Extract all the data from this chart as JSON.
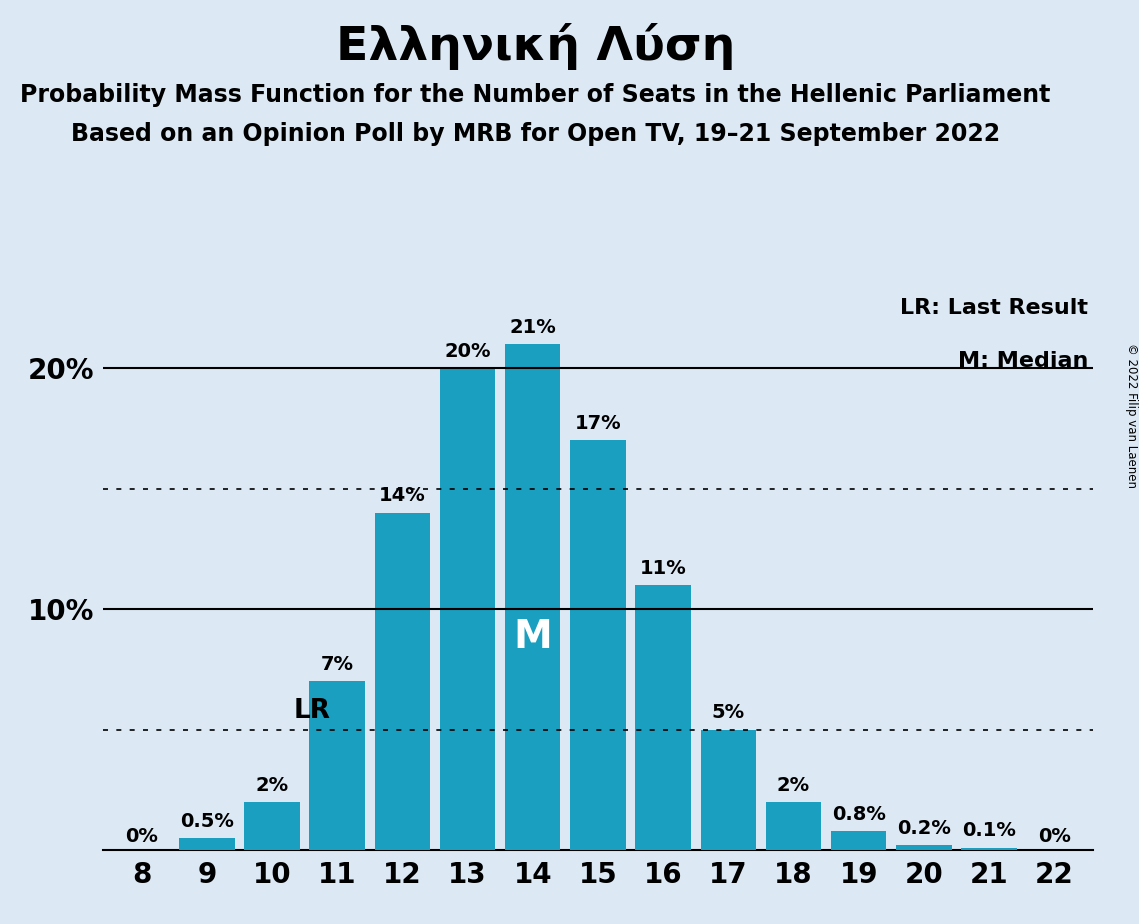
{
  "title": "Ελληνική Λύση",
  "subtitle1": "Probability Mass Function for the Number of Seats in the Hellenic Parliament",
  "subtitle2": "Based on an Opinion Poll by MRB for Open TV, 19–21 September 2022",
  "copyright": "© 2022 Filip van Laenen",
  "seats": [
    8,
    9,
    10,
    11,
    12,
    13,
    14,
    15,
    16,
    17,
    18,
    19,
    20,
    21,
    22
  ],
  "probabilities": [
    0.0,
    0.5,
    2.0,
    7.0,
    14.0,
    20.0,
    21.0,
    17.0,
    11.0,
    5.0,
    2.0,
    0.8,
    0.2,
    0.1,
    0.0
  ],
  "labels": [
    "0%",
    "0.5%",
    "2%",
    "7%",
    "14%",
    "20%",
    "21%",
    "17%",
    "11%",
    "5%",
    "2%",
    "0.8%",
    "0.2%",
    "0.1%",
    "0%"
  ],
  "bar_color": "#1a9fc0",
  "background_color": "#dce9f5",
  "median_seat": 14,
  "lr_seat": 11,
  "lr_value": 5.0,
  "ylim": [
    0,
    23
  ],
  "hline_solid": [
    10,
    20
  ],
  "hline_dotted": [
    5,
    15
  ],
  "legend_lr": "LR: Last Result",
  "legend_m": "M: Median",
  "title_fontsize": 34,
  "subtitle_fontsize": 17,
  "label_fontsize": 14,
  "tick_fontsize": 20,
  "legend_fontsize": 16,
  "ytick_labels_map": {
    "10": "10%",
    "20": "20%"
  }
}
